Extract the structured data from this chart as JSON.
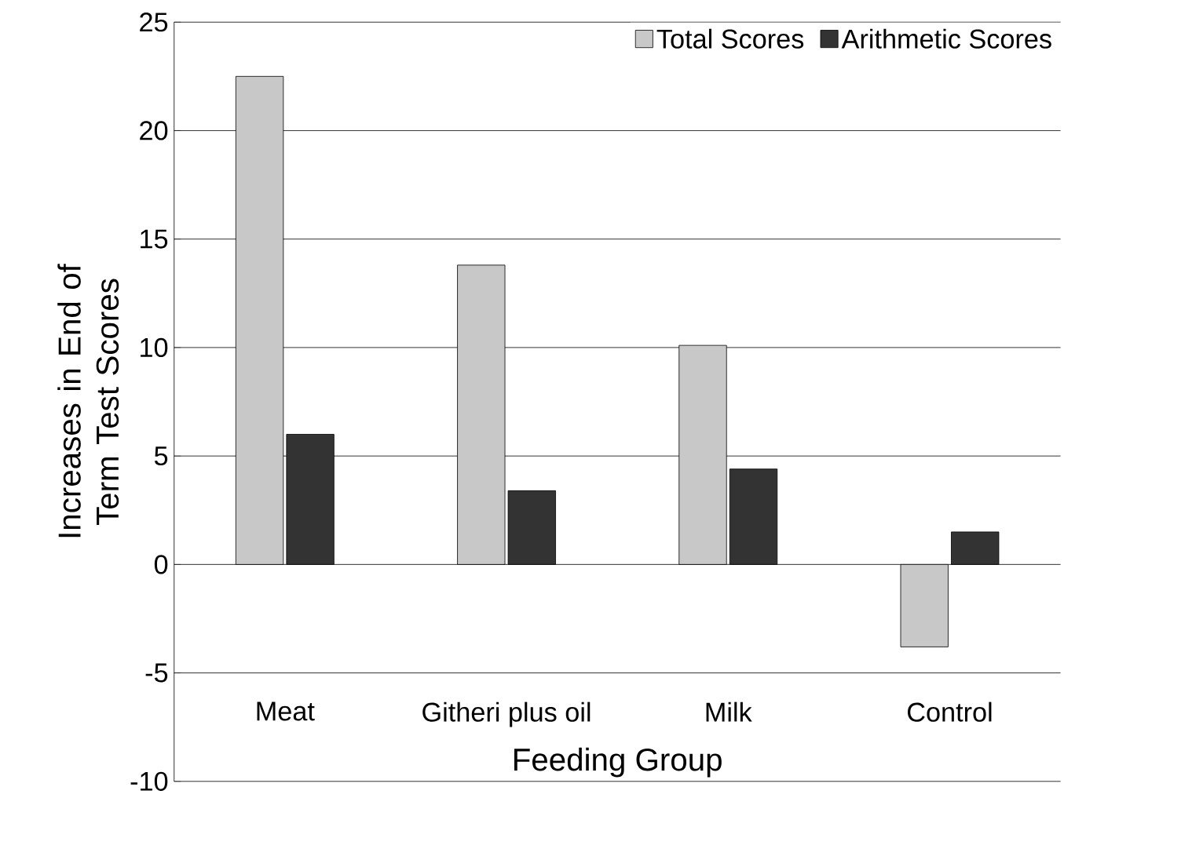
{
  "chart_data": {
    "type": "bar",
    "xlabel": "Feeding Group",
    "ylabel": "Increases in End of Term Test Scores",
    "categories": [
      "Meat",
      "Githeri plus oil",
      "Milk",
      "Control"
    ],
    "series": [
      {
        "name": "Total Scores",
        "color": "#c8c8c8",
        "values": [
          22.5,
          13.8,
          10.1,
          -3.8
        ]
      },
      {
        "name": "Arithmetic Scores",
        "color": "#333333",
        "values": [
          6.0,
          3.4,
          4.4,
          1.5
        ]
      }
    ],
    "ylim": [
      -10,
      25
    ],
    "yticks": [
      -10,
      -5,
      0,
      5,
      10,
      15,
      20,
      25
    ],
    "grid": "y",
    "legend": "top right"
  }
}
